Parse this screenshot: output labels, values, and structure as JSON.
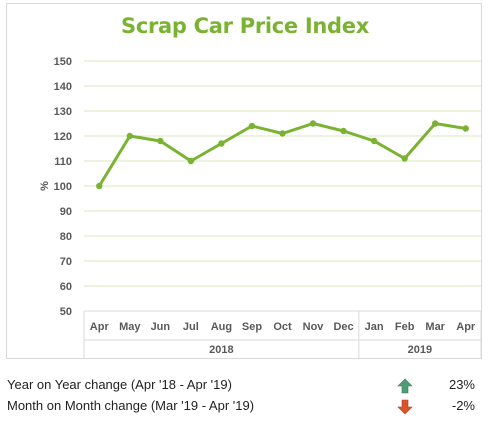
{
  "chart_data": {
    "type": "line",
    "title": "Scrap Car Price Index",
    "ylabel": "%",
    "xlabel": "",
    "categories": [
      "Apr",
      "May",
      "Jun",
      "Jul",
      "Aug",
      "Sep",
      "Oct",
      "Nov",
      "Dec",
      "Jan",
      "Feb",
      "Mar",
      "Apr"
    ],
    "year_groups": [
      {
        "label": "2018",
        "from": 0,
        "to": 8
      },
      {
        "label": "2019",
        "from": 9,
        "to": 12
      }
    ],
    "series": [
      {
        "values": [
          100,
          120,
          118,
          110,
          117,
          124,
          121,
          125,
          122,
          118,
          111,
          125,
          123
        ],
        "color": "#7ab332"
      }
    ],
    "ylim": [
      50,
      150
    ],
    "yticks": [
      50,
      60,
      70,
      80,
      90,
      100,
      110,
      120,
      130,
      140,
      150
    ],
    "grid": true,
    "title_color": "#7ab332"
  },
  "summary": {
    "yoy": {
      "label": "Year on Year change (Apr '18 - Apr '19)",
      "value": "23%",
      "direction": "up",
      "icon": "up-arrow-icon",
      "color": "#4f9a77"
    },
    "mom": {
      "label": "Month on Month change (Mar '19 - Apr '19)",
      "value": "-2%",
      "direction": "down",
      "icon": "down-arrow-icon",
      "color": "#d9542b"
    }
  }
}
